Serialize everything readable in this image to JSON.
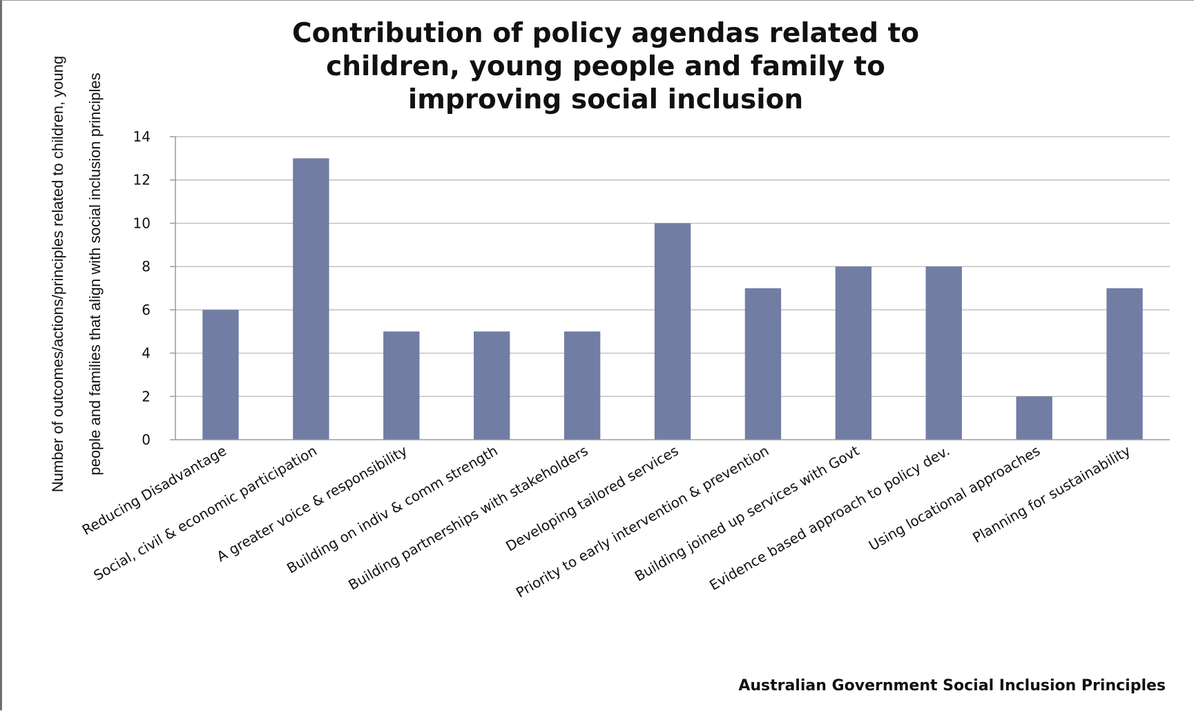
{
  "chart_data": {
    "type": "bar",
    "title_lines": [
      "Contribution of policy agendas related to",
      "children, young people and family to",
      "improving social inclusion"
    ],
    "ylabel_lines": [
      "Number of outcomes/actions/principles  related to children, young",
      "people and families that align with social inclusion principles"
    ],
    "xlabel": "Australian Government Social Inclusion Principles",
    "categories": [
      "Reducing Disadvantage",
      "Social, civil & economic participation",
      "A greater voice & responsibility",
      "Building on indiv & comm strength",
      "Building partnerships with stakeholders",
      "Developing tailored services",
      "Priority to early intervention & prevention",
      "Building joined up services with Govt",
      "Evidence based approach to policy dev.",
      "Using locational approaches",
      "Planning for sustainability"
    ],
    "values": [
      6,
      13,
      5,
      5,
      5,
      10,
      7,
      8,
      8,
      2,
      7
    ],
    "ylim": [
      0,
      14
    ],
    "yticks": [
      "0",
      "2",
      "4",
      "6",
      "8",
      "10",
      "12",
      "14"
    ],
    "grid": true,
    "legend": "none",
    "colors": {
      "bar": "#717da3",
      "grid": "#b5b5b5",
      "axis": "#9a9a9a",
      "text": "#111111"
    }
  }
}
